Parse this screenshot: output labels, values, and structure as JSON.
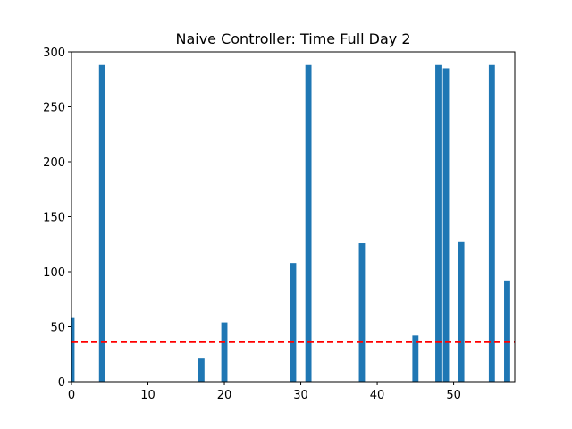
{
  "chart_data": {
    "type": "bar",
    "title": "Naive Controller: Time Full Day 2",
    "xlabel": "",
    "ylabel": "",
    "xlim": [
      0,
      58
    ],
    "ylim": [
      0,
      300
    ],
    "xticks": [
      0,
      10,
      20,
      30,
      40,
      50
    ],
    "yticks": [
      0,
      50,
      100,
      150,
      200,
      250,
      300
    ],
    "bar_width": 0.8,
    "bar_color": "#1f77b4",
    "reference_line": {
      "value": 36,
      "color": "#ff0000",
      "style": "dashed"
    },
    "bars": [
      {
        "x": 0,
        "value": 58
      },
      {
        "x": 4,
        "value": 288
      },
      {
        "x": 17,
        "value": 21
      },
      {
        "x": 20,
        "value": 54
      },
      {
        "x": 29,
        "value": 108
      },
      {
        "x": 31,
        "value": 288
      },
      {
        "x": 38,
        "value": 126
      },
      {
        "x": 45,
        "value": 42
      },
      {
        "x": 48,
        "value": 288
      },
      {
        "x": 49,
        "value": 285
      },
      {
        "x": 51,
        "value": 127
      },
      {
        "x": 55,
        "value": 288
      },
      {
        "x": 57,
        "value": 92
      }
    ],
    "grid": false,
    "legend": "none"
  }
}
